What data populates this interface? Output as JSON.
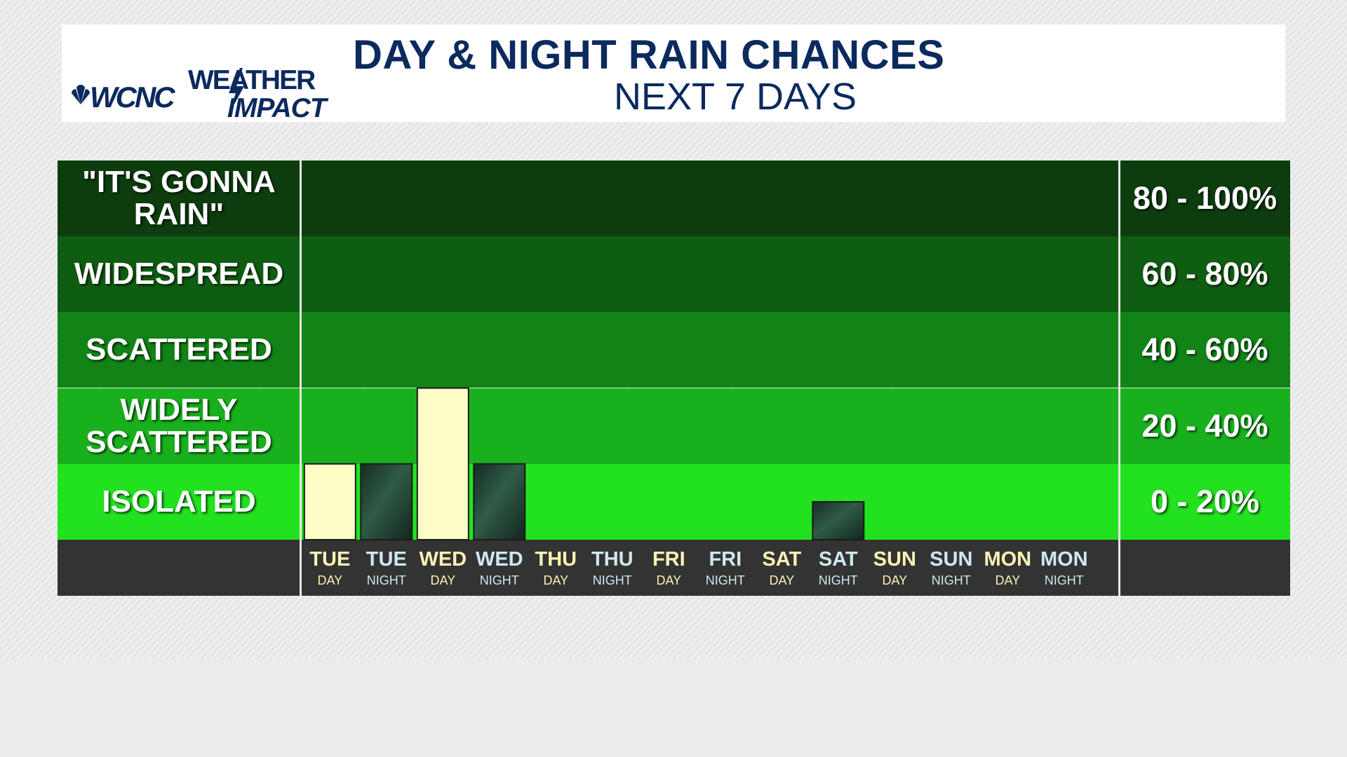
{
  "header": {
    "logo_station": "WCNC",
    "logo_brand_top": "WEATHER",
    "logo_brand_bottom": "IMPACT",
    "title": "DAY & NIGHT RAIN CHANCES",
    "subtitle": "NEXT 7 DAYS"
  },
  "bands": [
    {
      "label": "\"IT'S GONNA RAIN\"",
      "range": "80 - 100%",
      "color": "#0d3d0e"
    },
    {
      "label": "WIDESPREAD",
      "range": "60 - 80%",
      "color": "#0f5d12"
    },
    {
      "label": "SCATTERED",
      "range": "40 - 60%",
      "color": "#128316"
    },
    {
      "label": "WIDELY SCATTERED",
      "range": "20 - 40%",
      "color": "#18b11d"
    },
    {
      "label": "ISOLATED",
      "range": "0 - 20%",
      "color": "#22e21f"
    }
  ],
  "colors": {
    "day_bar": "#fcfcc6",
    "night_bar": "#1f3a2e",
    "day_text": "#fbf2b4",
    "night_text": "#cfe8ef",
    "axis_row": "#333333",
    "title": "#0b2a5e"
  },
  "chart_data": {
    "type": "bar",
    "title": "DAY & NIGHT RAIN CHANCES",
    "subtitle": "NEXT 7 DAYS",
    "categories": [
      {
        "day": "TUE",
        "part": "DAY"
      },
      {
        "day": "TUE",
        "part": "NIGHT"
      },
      {
        "day": "WED",
        "part": "DAY"
      },
      {
        "day": "WED",
        "part": "NIGHT"
      },
      {
        "day": "THU",
        "part": "DAY"
      },
      {
        "day": "THU",
        "part": "NIGHT"
      },
      {
        "day": "FRI",
        "part": "DAY"
      },
      {
        "day": "FRI",
        "part": "NIGHT"
      },
      {
        "day": "SAT",
        "part": "DAY"
      },
      {
        "day": "SAT",
        "part": "NIGHT"
      },
      {
        "day": "SUN",
        "part": "DAY"
      },
      {
        "day": "SUN",
        "part": "NIGHT"
      },
      {
        "day": "MON",
        "part": "DAY"
      },
      {
        "day": "MON",
        "part": "NIGHT"
      }
    ],
    "values": [
      20,
      20,
      40,
      20,
      0,
      0,
      0,
      0,
      0,
      10,
      0,
      0,
      0,
      0
    ],
    "ylim": [
      0,
      100
    ],
    "grid": false,
    "legend": "none"
  }
}
